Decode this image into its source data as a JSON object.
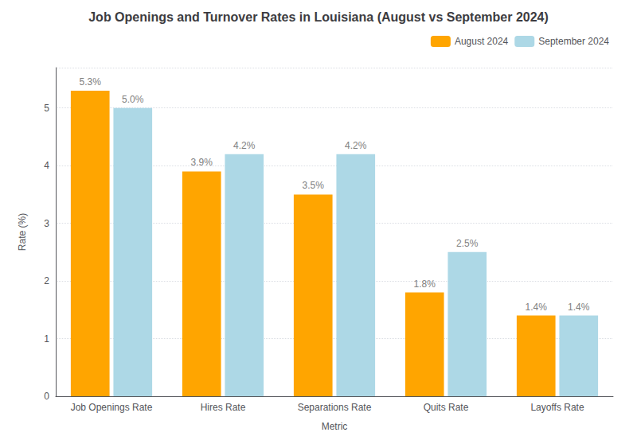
{
  "chart_data": {
    "type": "bar",
    "title": "Job Openings and Turnover Rates in Louisiana (August vs September 2024)",
    "xlabel": "Metric",
    "ylabel": "Rate (%)",
    "categories": [
      "Job Openings Rate",
      "Hires Rate",
      "Separations Rate",
      "Quits Rate",
      "Layoffs Rate"
    ],
    "series": [
      {
        "name": "August 2024",
        "color": "#FFA500",
        "values": [
          5.3,
          3.9,
          3.5,
          1.8,
          1.4
        ],
        "value_labels": [
          "5.3%",
          "3.9%",
          "3.5%",
          "1.8%",
          "1.4%"
        ]
      },
      {
        "name": "September 2024",
        "color": "#ADD8E6",
        "values": [
          5.0,
          4.2,
          4.2,
          2.5,
          1.4
        ],
        "value_labels": [
          "5.0%",
          "4.2%",
          "4.2%",
          "2.5%",
          "1.4%"
        ]
      }
    ],
    "ylim": [
      0,
      5.7
    ],
    "yticks": [
      0,
      1,
      2,
      3,
      4,
      5
    ],
    "grid": true,
    "legend": "upper right",
    "data_labels": true
  }
}
